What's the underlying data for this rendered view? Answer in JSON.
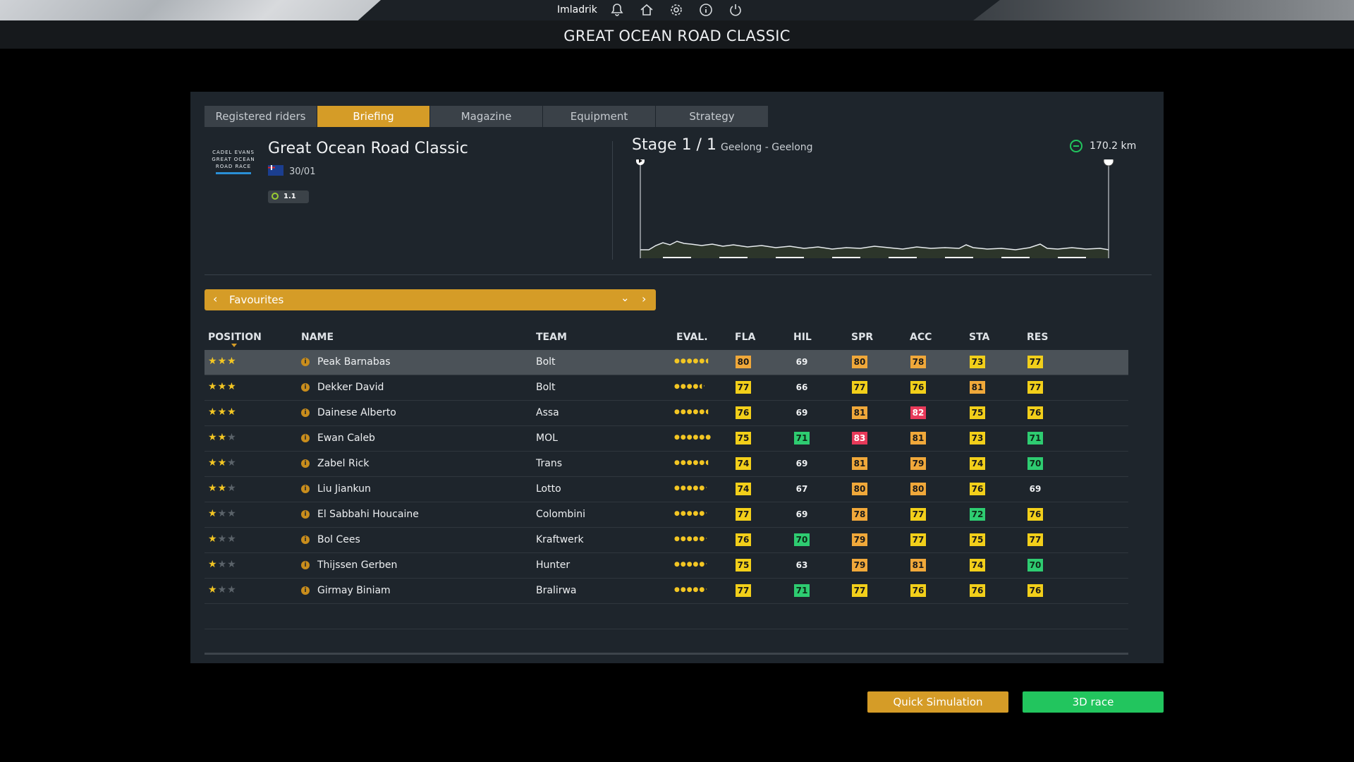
{
  "topbar": {
    "username": "Imladrik",
    "icons": [
      "bell-icon",
      "home-icon",
      "gear-icon",
      "info-icon",
      "power-icon"
    ]
  },
  "page_title": "GREAT OCEAN ROAD CLASSIC",
  "tabs": [
    {
      "label": "Registered riders",
      "active": false
    },
    {
      "label": "Briefing",
      "active": true
    },
    {
      "label": "Magazine",
      "active": false
    },
    {
      "label": "Equipment",
      "active": false
    },
    {
      "label": "Strategy",
      "active": false
    }
  ],
  "race": {
    "logo_lines": [
      "CADEL EVANS",
      "GREAT OCEAN",
      "ROAD RACE"
    ],
    "name": "Great Ocean Road Classic",
    "date": "30/01",
    "category": "1.1"
  },
  "stage": {
    "title": "Stage 1 / 1",
    "route": "Geelong - Geelong",
    "distance": "170.2 km"
  },
  "filter": {
    "label": "Favourites"
  },
  "table": {
    "headers": {
      "position": "POSITION",
      "name": "NAME",
      "team": "TEAM",
      "eval": "EVAL.",
      "fla": "FLA",
      "hil": "HIL",
      "spr": "SPR",
      "acc": "ACC",
      "sta": "STA",
      "res": "RES"
    },
    "rows": [
      {
        "stars": 3,
        "name": "Peak Barnabas",
        "team": "Bolt",
        "eval": 5.5,
        "fla": "80",
        "hil": "69",
        "spr": "80",
        "acc": "78",
        "sta": "73",
        "res": "77"
      },
      {
        "stars": 3,
        "name": "Dekker David",
        "team": "Bolt",
        "eval": 4.5,
        "fla": "77",
        "hil": "66",
        "spr": "77",
        "acc": "76",
        "sta": "81",
        "res": "77"
      },
      {
        "stars": 3,
        "name": "Dainese Alberto",
        "team": "Assa",
        "eval": 5.5,
        "fla": "76",
        "hil": "69",
        "spr": "81",
        "acc": "82",
        "sta": "75",
        "res": "76"
      },
      {
        "stars": 2,
        "name": "Ewan Caleb",
        "team": "MOL",
        "eval": 6,
        "fla": "75",
        "hil": "71",
        "spr": "83",
        "acc": "81",
        "sta": "73",
        "res": "71"
      },
      {
        "stars": 2,
        "name": "Zabel Rick",
        "team": "Trans",
        "eval": 5.5,
        "fla": "74",
        "hil": "69",
        "spr": "81",
        "acc": "79",
        "sta": "74",
        "res": "70"
      },
      {
        "stars": 2,
        "name": "Liu Jiankun",
        "team": "Lotto",
        "eval": 5,
        "fla": "74",
        "hil": "67",
        "spr": "80",
        "acc": "80",
        "sta": "76",
        "res": "69"
      },
      {
        "stars": 1,
        "name": "El Sabbahi Houcaine",
        "team": "Colombini",
        "eval": 5,
        "fla": "77",
        "hil": "69",
        "spr": "78",
        "acc": "77",
        "sta": "72",
        "res": "76"
      },
      {
        "stars": 1,
        "name": "Bol Cees",
        "team": "Kraftwerk",
        "eval": 5,
        "fla": "76",
        "hil": "70",
        "spr": "79",
        "acc": "77",
        "sta": "75",
        "res": "77"
      },
      {
        "stars": 1,
        "name": "Thijssen Gerben",
        "team": "Hunter",
        "eval": 5,
        "fla": "75",
        "hil": "63",
        "spr": "79",
        "acc": "81",
        "sta": "74",
        "res": "70"
      },
      {
        "stars": 1,
        "name": "Girmay Biniam",
        "team": "Bralirwa",
        "eval": 5,
        "fla": "77",
        "hil": "71",
        "spr": "77",
        "acc": "76",
        "sta": "76",
        "res": "76"
      }
    ]
  },
  "buttons": {
    "quick_sim": "Quick Simulation",
    "race_3d": "3D race"
  },
  "colors": {
    "accent": "#d59c27",
    "green": "#22c55e",
    "panel": "#1e252c"
  }
}
